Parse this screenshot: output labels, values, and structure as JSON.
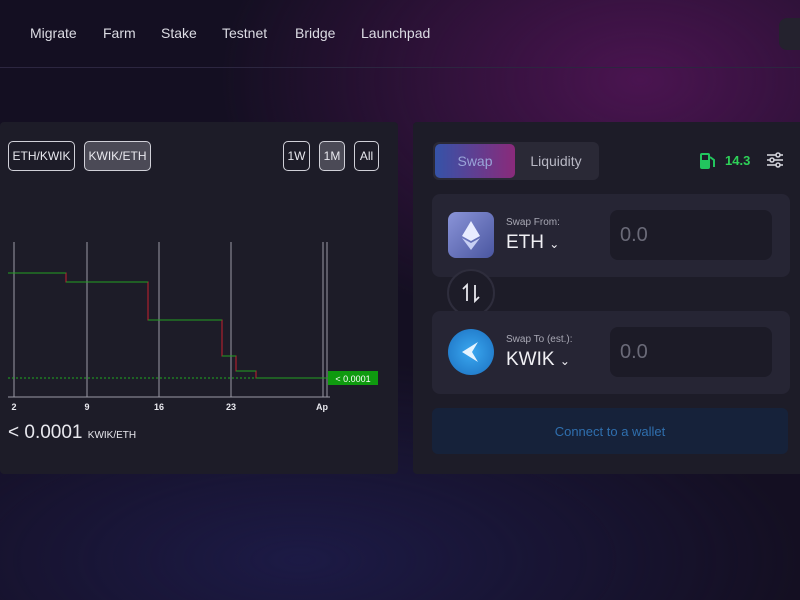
{
  "nav": {
    "items": [
      "Migrate",
      "Farm",
      "Stake",
      "Testnet",
      "Bridge",
      "Launchpad"
    ]
  },
  "price_panel": {
    "pairs": [
      "ETH/KWIK",
      "KWIK/ETH"
    ],
    "ranges": [
      "1W",
      "1M",
      "All"
    ],
    "x_labels": [
      "2",
      "9",
      "16",
      "23",
      "Ap"
    ],
    "current_tag": "< 0.0001",
    "price": "< 0.0001",
    "price_unit": "KWIK/ETH"
  },
  "swap_panel": {
    "tabs": [
      "Swap",
      "Liquidity"
    ],
    "gas": "14.3",
    "from": {
      "label": "Swap From:",
      "token": "ETH",
      "amount": "0.0"
    },
    "to": {
      "label": "Swap To (est.):",
      "token": "KWIK",
      "amount": "0.0"
    },
    "connect": "Connect to a wallet"
  }
}
